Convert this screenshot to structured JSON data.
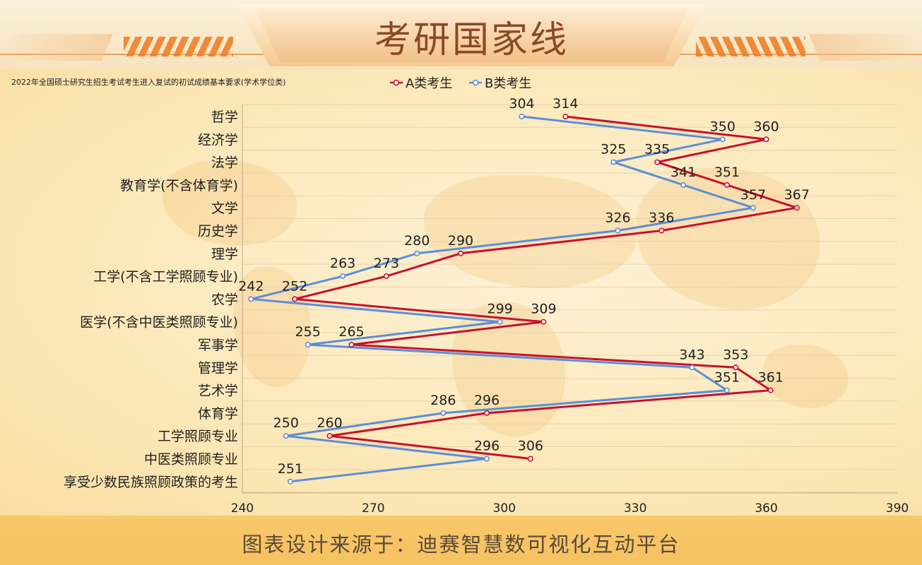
{
  "page": {
    "title": "考研国家线",
    "footer": "图表设计来源于：迪赛智慧数可视化互动平台"
  },
  "chart_data": {
    "type": "line",
    "title": "2022年全国硕士研究生招生考试考生进入复试的初试成绩基本要求(学术学位类)",
    "orientation": "horizontal",
    "categories": [
      "哲学",
      "经济学",
      "法学",
      "教育学(不含体育学)",
      "文学",
      "历史学",
      "理学",
      "工学(不含工学照顾专业)",
      "农学",
      "医学(不含中医类照顾专业)",
      "军事学",
      "管理学",
      "艺术学",
      "体育学",
      "工学照顾专业",
      "中医类照顾专业",
      "享受少数民族照顾政策的考生"
    ],
    "series": [
      {
        "name": "A类考生",
        "color": "#c8102e",
        "values": [
          314,
          360,
          335,
          351,
          367,
          336,
          290,
          273,
          252,
          309,
          265,
          353,
          361,
          296,
          260,
          306,
          null
        ]
      },
      {
        "name": "B类考生",
        "color": "#5b8fd6",
        "values": [
          304,
          350,
          325,
          341,
          357,
          326,
          280,
          263,
          242,
          299,
          255,
          343,
          351,
          286,
          250,
          296,
          251
        ]
      }
    ],
    "xlim": [
      240,
      390
    ],
    "xticks": [
      240,
      270,
      300,
      330,
      360,
      390
    ],
    "legend_position": "top",
    "grid": "horizontal",
    "data_labels": true
  }
}
